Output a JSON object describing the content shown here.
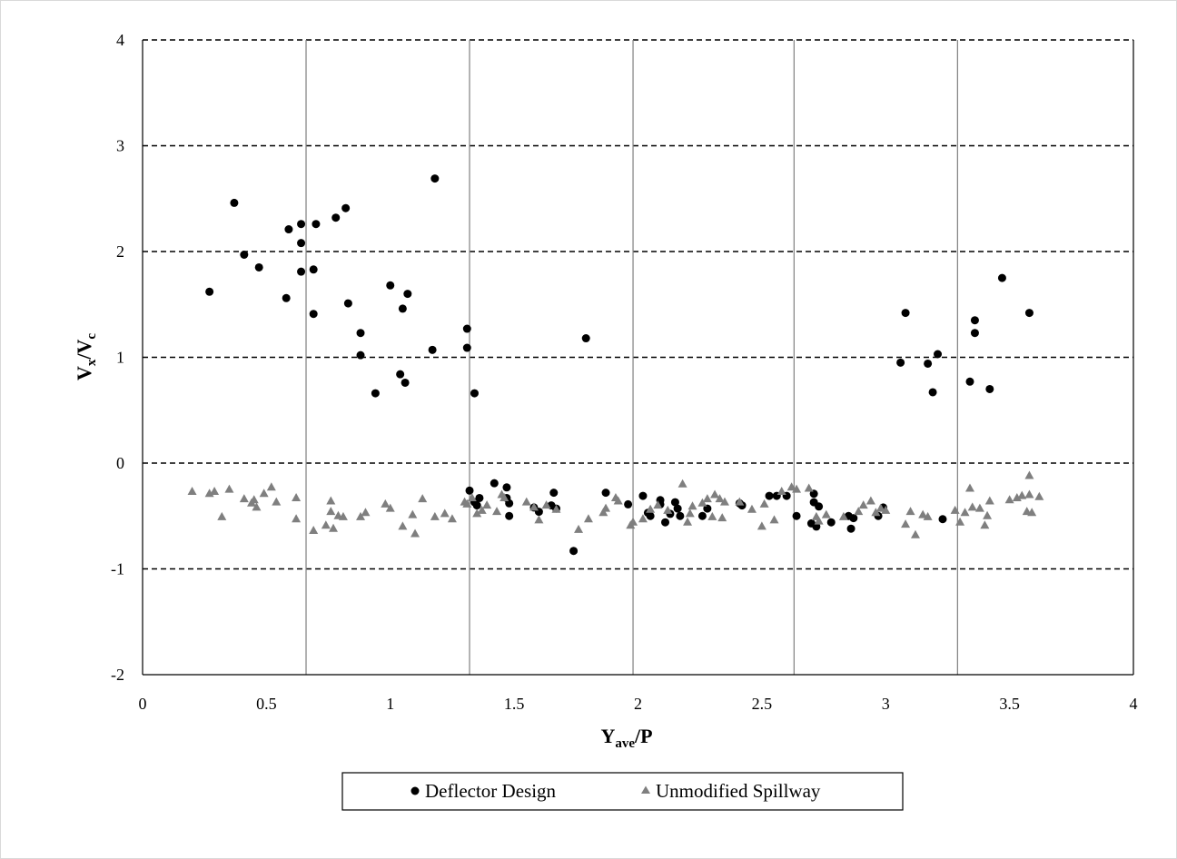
{
  "chart_data": {
    "type": "scatter",
    "xlabel": {
      "main": "Y",
      "sub": "ave",
      "rest": "/P"
    },
    "ylabel": {
      "main": "V",
      "sub1": "x",
      "mid": "/V",
      "sub2": "c"
    },
    "xlim": [
      0,
      4
    ],
    "ylim": [
      -2,
      4
    ],
    "x_ticks": [
      "0",
      "0.5",
      "1",
      "1.5",
      "2",
      "2.5",
      "3",
      "3.5",
      "4"
    ],
    "y_ticks": [
      "-2",
      "-1",
      "0",
      "1",
      "2",
      "3",
      "4"
    ],
    "horizontal_gridlines": [
      -1,
      0,
      1,
      2,
      3,
      4
    ],
    "vertical_reference_lines": [
      0.66,
      1.32,
      1.98,
      2.63,
      3.29
    ],
    "legend_position": "bottom",
    "series": [
      {
        "name": "Deflector Design",
        "marker": "circle",
        "color": "#000000",
        "points": [
          [
            0.27,
            1.62
          ],
          [
            0.37,
            2.46
          ],
          [
            0.41,
            1.97
          ],
          [
            0.47,
            1.85
          ],
          [
            0.58,
            1.56
          ],
          [
            0.59,
            2.21
          ],
          [
            0.64,
            2.26
          ],
          [
            0.64,
            2.08
          ],
          [
            0.64,
            1.81
          ],
          [
            0.69,
            1.83
          ],
          [
            0.69,
            1.41
          ],
          [
            0.7,
            2.26
          ],
          [
            0.78,
            2.32
          ],
          [
            0.82,
            2.41
          ],
          [
            0.83,
            1.51
          ],
          [
            0.88,
            1.23
          ],
          [
            0.88,
            1.02
          ],
          [
            0.94,
            0.66
          ],
          [
            1.0,
            1.68
          ],
          [
            1.04,
            0.84
          ],
          [
            1.05,
            1.46
          ],
          [
            1.06,
            0.76
          ],
          [
            1.07,
            1.6
          ],
          [
            1.17,
            1.07
          ],
          [
            1.18,
            2.69
          ],
          [
            1.31,
            1.27
          ],
          [
            1.31,
            1.09
          ],
          [
            1.34,
            0.66
          ],
          [
            1.32,
            -0.26
          ],
          [
            1.34,
            -0.37
          ],
          [
            1.35,
            -0.4
          ],
          [
            1.36,
            -0.33
          ],
          [
            1.42,
            -0.19
          ],
          [
            1.47,
            -0.23
          ],
          [
            1.47,
            -0.33
          ],
          [
            1.48,
            -0.38
          ],
          [
            1.48,
            -0.5
          ],
          [
            1.58,
            -0.42
          ],
          [
            1.6,
            -0.46
          ],
          [
            1.65,
            -0.4
          ],
          [
            1.66,
            -0.28
          ],
          [
            1.67,
            -0.43
          ],
          [
            1.74,
            -0.83
          ],
          [
            1.79,
            1.18
          ],
          [
            1.87,
            -0.28
          ],
          [
            1.96,
            -0.39
          ],
          [
            2.02,
            -0.31
          ],
          [
            2.04,
            -0.47
          ],
          [
            2.05,
            -0.5
          ],
          [
            2.09,
            -0.35
          ],
          [
            2.09,
            -0.39
          ],
          [
            2.11,
            -0.56
          ],
          [
            2.13,
            -0.48
          ],
          [
            2.15,
            -0.37
          ],
          [
            2.16,
            -0.43
          ],
          [
            2.17,
            -0.5
          ],
          [
            2.26,
            -0.5
          ],
          [
            2.28,
            -0.43
          ],
          [
            2.41,
            -0.38
          ],
          [
            2.42,
            -0.4
          ],
          [
            2.53,
            -0.31
          ],
          [
            2.56,
            -0.31
          ],
          [
            2.6,
            -0.31
          ],
          [
            2.64,
            -0.5
          ],
          [
            2.7,
            -0.57
          ],
          [
            2.71,
            -0.29
          ],
          [
            2.71,
            -0.37
          ],
          [
            2.72,
            -0.6
          ],
          [
            2.73,
            -0.41
          ],
          [
            2.78,
            -0.56
          ],
          [
            2.85,
            -0.5
          ],
          [
            2.86,
            -0.62
          ],
          [
            2.87,
            -0.52
          ],
          [
            2.97,
            -0.5
          ],
          [
            2.99,
            -0.42
          ],
          [
            3.06,
            0.95
          ],
          [
            3.08,
            1.42
          ],
          [
            3.17,
            0.94
          ],
          [
            3.19,
            0.67
          ],
          [
            3.21,
            1.03
          ],
          [
            3.23,
            -0.53
          ],
          [
            3.34,
            0.77
          ],
          [
            3.36,
            1.35
          ],
          [
            3.36,
            1.23
          ],
          [
            3.42,
            0.7
          ],
          [
            3.47,
            1.75
          ],
          [
            3.58,
            1.42
          ]
        ]
      },
      {
        "name": "Unmodified Spillway",
        "marker": "triangle",
        "color": "#7f7f7f",
        "points": [
          [
            0.2,
            -0.27
          ],
          [
            0.27,
            -0.29
          ],
          [
            0.29,
            -0.27
          ],
          [
            0.32,
            -0.51
          ],
          [
            0.35,
            -0.25
          ],
          [
            0.41,
            -0.34
          ],
          [
            0.44,
            -0.38
          ],
          [
            0.45,
            -0.35
          ],
          [
            0.46,
            -0.42
          ],
          [
            0.49,
            -0.29
          ],
          [
            0.52,
            -0.23
          ],
          [
            0.54,
            -0.37
          ],
          [
            0.62,
            -0.33
          ],
          [
            0.62,
            -0.53
          ],
          [
            0.69,
            -0.64
          ],
          [
            0.74,
            -0.59
          ],
          [
            0.76,
            -0.36
          ],
          [
            0.76,
            -0.46
          ],
          [
            0.77,
            -0.62
          ],
          [
            0.79,
            -0.5
          ],
          [
            0.81,
            -0.51
          ],
          [
            0.88,
            -0.51
          ],
          [
            0.9,
            -0.47
          ],
          [
            0.98,
            -0.39
          ],
          [
            1.0,
            -0.43
          ],
          [
            1.05,
            -0.6
          ],
          [
            1.09,
            -0.49
          ],
          [
            1.1,
            -0.67
          ],
          [
            1.13,
            -0.34
          ],
          [
            1.18,
            -0.51
          ],
          [
            1.22,
            -0.48
          ],
          [
            1.25,
            -0.53
          ],
          [
            1.3,
            -0.37
          ],
          [
            1.31,
            -0.39
          ],
          [
            1.33,
            -0.33
          ],
          [
            1.35,
            -0.48
          ],
          [
            1.37,
            -0.45
          ],
          [
            1.39,
            -0.4
          ],
          [
            1.43,
            -0.46
          ],
          [
            1.45,
            -0.3
          ],
          [
            1.46,
            -0.33
          ],
          [
            1.55,
            -0.37
          ],
          [
            1.58,
            -0.42
          ],
          [
            1.6,
            -0.54
          ],
          [
            1.63,
            -0.4
          ],
          [
            1.67,
            -0.44
          ],
          [
            1.76,
            -0.63
          ],
          [
            1.8,
            -0.53
          ],
          [
            1.86,
            -0.47
          ],
          [
            1.87,
            -0.43
          ],
          [
            1.91,
            -0.33
          ],
          [
            1.92,
            -0.36
          ],
          [
            1.97,
            -0.59
          ],
          [
            1.98,
            -0.56
          ],
          [
            2.02,
            -0.53
          ],
          [
            2.05,
            -0.44
          ],
          [
            2.08,
            -0.4
          ],
          [
            2.12,
            -0.45
          ],
          [
            2.18,
            -0.2
          ],
          [
            2.2,
            -0.56
          ],
          [
            2.21,
            -0.48
          ],
          [
            2.22,
            -0.41
          ],
          [
            2.26,
            -0.38
          ],
          [
            2.28,
            -0.34
          ],
          [
            2.3,
            -0.51
          ],
          [
            2.31,
            -0.3
          ],
          [
            2.33,
            -0.34
          ],
          [
            2.34,
            -0.52
          ],
          [
            2.35,
            -0.37
          ],
          [
            2.41,
            -0.37
          ],
          [
            2.46,
            -0.44
          ],
          [
            2.5,
            -0.6
          ],
          [
            2.51,
            -0.39
          ],
          [
            2.55,
            -0.54
          ],
          [
            2.58,
            -0.27
          ],
          [
            2.62,
            -0.23
          ],
          [
            2.64,
            -0.25
          ],
          [
            2.69,
            -0.24
          ],
          [
            2.72,
            -0.51
          ],
          [
            2.73,
            -0.55
          ],
          [
            2.76,
            -0.49
          ],
          [
            2.83,
            -0.51
          ],
          [
            2.89,
            -0.46
          ],
          [
            2.91,
            -0.4
          ],
          [
            2.94,
            -0.36
          ],
          [
            2.96,
            -0.47
          ],
          [
            2.98,
            -0.43
          ],
          [
            3.0,
            -0.45
          ],
          [
            3.08,
            -0.58
          ],
          [
            3.1,
            -0.46
          ],
          [
            3.12,
            -0.68
          ],
          [
            3.15,
            -0.49
          ],
          [
            3.17,
            -0.51
          ],
          [
            3.28,
            -0.45
          ],
          [
            3.3,
            -0.56
          ],
          [
            3.32,
            -0.47
          ],
          [
            3.34,
            -0.24
          ],
          [
            3.35,
            -0.42
          ],
          [
            3.38,
            -0.43
          ],
          [
            3.4,
            -0.59
          ],
          [
            3.41,
            -0.5
          ],
          [
            3.42,
            -0.36
          ],
          [
            3.5,
            -0.35
          ],
          [
            3.53,
            -0.33
          ],
          [
            3.55,
            -0.31
          ],
          [
            3.57,
            -0.46
          ],
          [
            3.58,
            -0.3
          ],
          [
            3.58,
            -0.12
          ],
          [
            3.59,
            -0.47
          ],
          [
            3.62,
            -0.32
          ]
        ]
      }
    ]
  }
}
